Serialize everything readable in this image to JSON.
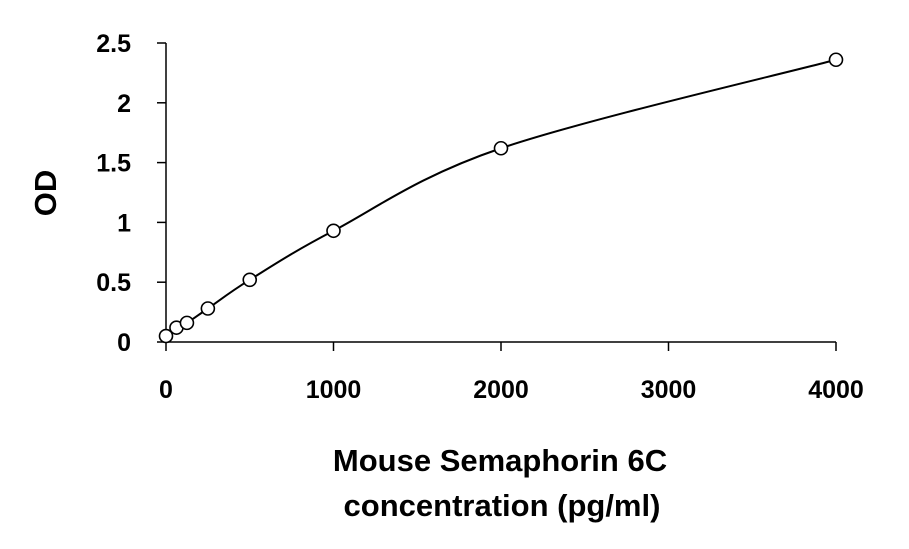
{
  "chart_data": {
    "type": "scatter",
    "title": "",
    "xlabel_lines": [
      "Mouse Semaphorin 6C",
      "concentration (pg/ml)"
    ],
    "ylabel": "OD",
    "xlim": [
      0,
      4000
    ],
    "ylim": [
      0,
      2.5
    ],
    "x_ticks": [
      0,
      1000,
      2000,
      3000,
      4000
    ],
    "x_tick_labels": [
      "0",
      "1000",
      "2000",
      "3000",
      "4000"
    ],
    "y_ticks": [
      0,
      0.5,
      1,
      1.5,
      2,
      2.5
    ],
    "y_tick_labels": [
      "0",
      "0.5",
      "1",
      "1.5",
      "2",
      "2.5"
    ],
    "grid": false,
    "legend": "none",
    "series": [
      {
        "marker": "open-circle",
        "fit_line": "smooth-curve",
        "points": [
          {
            "x": 0,
            "y": 0.05
          },
          {
            "x": 62.5,
            "y": 0.12
          },
          {
            "x": 125,
            "y": 0.16
          },
          {
            "x": 250,
            "y": 0.28
          },
          {
            "x": 500,
            "y": 0.52
          },
          {
            "x": 1000,
            "y": 0.93
          },
          {
            "x": 2000,
            "y": 1.62
          },
          {
            "x": 4000,
            "y": 2.36
          }
        ]
      }
    ],
    "colors": {
      "axis": "#000000",
      "line": "#000000",
      "marker_fill": "#ffffff"
    }
  }
}
